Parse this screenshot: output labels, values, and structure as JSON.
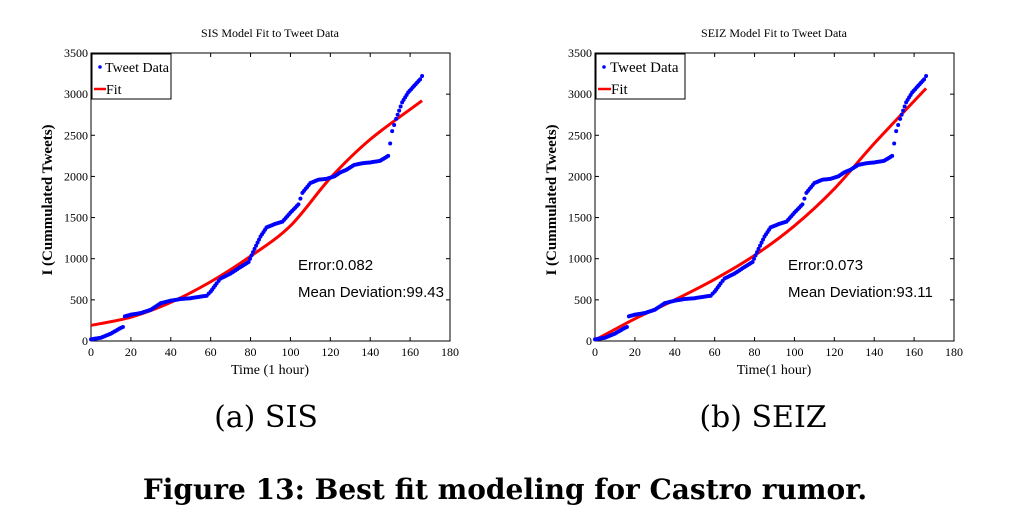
{
  "figure": {
    "caption": "Figure 13: Best fit modeling for Castro rumor."
  },
  "chart_data": [
    {
      "type": "scatter",
      "panel_label": "(a) SIS",
      "title": "SIS Model Fit to Tweet Data",
      "xlabel": "Time (1 hour)",
      "ylabel": "I (Cummulated Tweets)",
      "xlim": [
        0,
        180
      ],
      "ylim": [
        0,
        3500
      ],
      "xticks": [
        "0",
        "20",
        "40",
        "60",
        "80",
        "100",
        "120",
        "140",
        "160",
        "180"
      ],
      "yticks": [
        "0",
        "500",
        "1000",
        "1500",
        "2000",
        "2500",
        "3000",
        "3500"
      ],
      "legend": {
        "position": "top-left",
        "entries": [
          "Tweet Data",
          "Fit"
        ]
      },
      "annotations": [
        "Error:0.082",
        "Mean Deviation:99.43"
      ],
      "series": [
        {
          "name": "Tweet Data",
          "marker": "dot",
          "color": "#0000ff",
          "points": [
            [
              0,
              20
            ],
            [
              5,
              40
            ],
            [
              10,
              90
            ],
            [
              15,
              160
            ],
            [
              16,
              170
            ],
            [
              17,
              300
            ],
            [
              20,
              320
            ],
            [
              25,
              340
            ],
            [
              30,
              380
            ],
            [
              35,
              460
            ],
            [
              40,
              490
            ],
            [
              45,
              510
            ],
            [
              50,
              520
            ],
            [
              55,
              540
            ],
            [
              58,
              550
            ],
            [
              60,
              600
            ],
            [
              63,
              700
            ],
            [
              65,
              760
            ],
            [
              70,
              820
            ],
            [
              75,
              900
            ],
            [
              79,
              960
            ],
            [
              82,
              1120
            ],
            [
              85,
              1270
            ],
            [
              88,
              1380
            ],
            [
              92,
              1420
            ],
            [
              96,
              1450
            ],
            [
              100,
              1560
            ],
            [
              104,
              1660
            ],
            [
              106,
              1800
            ],
            [
              110,
              1920
            ],
            [
              114,
              1960
            ],
            [
              118,
              1970
            ],
            [
              122,
              2000
            ],
            [
              125,
              2050
            ],
            [
              128,
              2080
            ],
            [
              132,
              2140
            ],
            [
              136,
              2160
            ],
            [
              140,
              2170
            ],
            [
              145,
              2190
            ],
            [
              149,
              2250
            ],
            [
              151,
              2550
            ],
            [
              153,
              2700
            ],
            [
              156,
              2900
            ],
            [
              159,
              3020
            ],
            [
              162,
              3100
            ],
            [
              165,
              3180
            ],
            [
              166,
              3220
            ]
          ]
        },
        {
          "name": "Fit",
          "color": "#ff0000",
          "points": [
            [
              0,
              190
            ],
            [
              20,
              290
            ],
            [
              40,
              470
            ],
            [
              60,
              720
            ],
            [
              80,
              1030
            ],
            [
              100,
              1400
            ],
            [
              120,
              1980
            ],
            [
              140,
              2450
            ],
            [
              166,
              2920
            ]
          ]
        }
      ]
    },
    {
      "type": "scatter",
      "panel_label": "(b) SEIZ",
      "title": "SEIZ Model Fit to Tweet Data",
      "xlabel": "Time(1 hour)",
      "ylabel": "I (Cummulated Tweets)",
      "xlim": [
        0,
        180
      ],
      "ylim": [
        0,
        3500
      ],
      "xticks": [
        "0",
        "20",
        "40",
        "60",
        "80",
        "100",
        "120",
        "140",
        "160",
        "180"
      ],
      "yticks": [
        "0",
        "500",
        "1000",
        "1500",
        "2000",
        "2500",
        "3000",
        "3500"
      ],
      "legend": {
        "position": "top-left",
        "entries": [
          "Tweet Data",
          "Fit"
        ]
      },
      "annotations": [
        "Error:0.073",
        "Mean Deviation:93.11"
      ],
      "series": [
        {
          "name": "Tweet Data",
          "marker": "dot",
          "color": "#0000ff",
          "points": [
            [
              0,
              20
            ],
            [
              5,
              40
            ],
            [
              10,
              90
            ],
            [
              15,
              160
            ],
            [
              16,
              170
            ],
            [
              17,
              300
            ],
            [
              20,
              320
            ],
            [
              25,
              340
            ],
            [
              30,
              380
            ],
            [
              35,
              460
            ],
            [
              40,
              490
            ],
            [
              45,
              510
            ],
            [
              50,
              520
            ],
            [
              55,
              540
            ],
            [
              58,
              550
            ],
            [
              60,
              600
            ],
            [
              63,
              700
            ],
            [
              65,
              760
            ],
            [
              70,
              820
            ],
            [
              75,
              900
            ],
            [
              79,
              960
            ],
            [
              82,
              1120
            ],
            [
              85,
              1270
            ],
            [
              88,
              1380
            ],
            [
              92,
              1420
            ],
            [
              96,
              1450
            ],
            [
              100,
              1560
            ],
            [
              104,
              1660
            ],
            [
              106,
              1800
            ],
            [
              110,
              1920
            ],
            [
              114,
              1960
            ],
            [
              118,
              1970
            ],
            [
              122,
              2000
            ],
            [
              125,
              2050
            ],
            [
              128,
              2080
            ],
            [
              132,
              2140
            ],
            [
              136,
              2160
            ],
            [
              140,
              2170
            ],
            [
              145,
              2190
            ],
            [
              149,
              2250
            ],
            [
              151,
              2550
            ],
            [
              153,
              2700
            ],
            [
              156,
              2900
            ],
            [
              159,
              3020
            ],
            [
              162,
              3100
            ],
            [
              165,
              3180
            ],
            [
              166,
              3220
            ]
          ]
        },
        {
          "name": "Fit",
          "color": "#ff0000",
          "points": [
            [
              0,
              10
            ],
            [
              20,
              270
            ],
            [
              40,
              500
            ],
            [
              60,
              750
            ],
            [
              80,
              1040
            ],
            [
              100,
              1400
            ],
            [
              120,
              1850
            ],
            [
              140,
              2400
            ],
            [
              166,
              3070
            ]
          ]
        }
      ]
    }
  ]
}
